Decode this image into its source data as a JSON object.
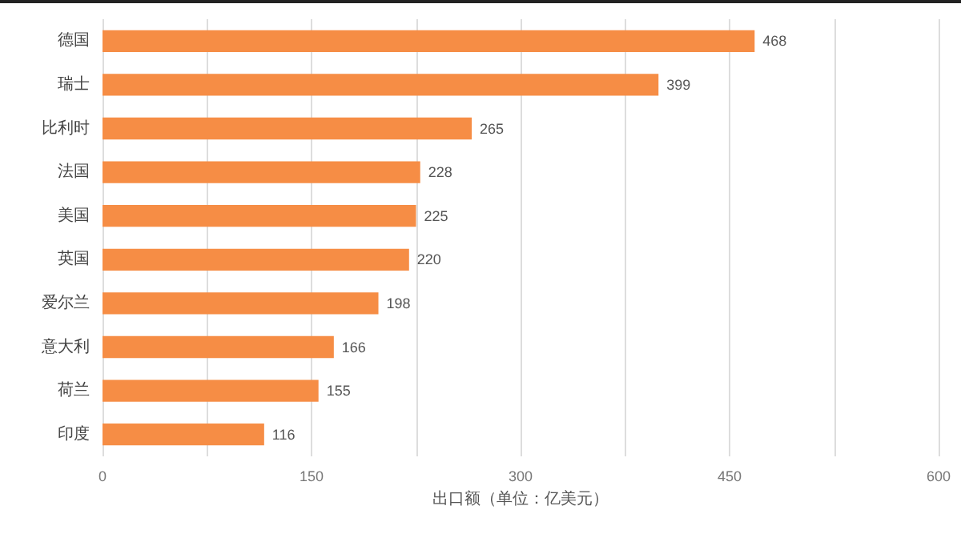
{
  "chart_data": {
    "type": "bar",
    "orientation": "horizontal",
    "xlabel": "出口额（单位：亿美元）",
    "categories": [
      "德国",
      "瑞士",
      "比利时",
      "法国",
      "美国",
      "英国",
      "爱尔兰",
      "意大利",
      "荷兰",
      "印度"
    ],
    "values": [
      468,
      399,
      265,
      228,
      225,
      220,
      198,
      166,
      155,
      116
    ],
    "color": "#f68d45",
    "xlim": [
      0,
      600
    ],
    "xticks": [
      0,
      {
        "value": 75,
        "label": null
      },
      150,
      {
        "value": 225,
        "label": null
      },
      300,
      {
        "value": 375,
        "label": null
      },
      450,
      {
        "value": 525,
        "label": null
      },
      600
    ],
    "grid": "x",
    "data_labels": true
  }
}
